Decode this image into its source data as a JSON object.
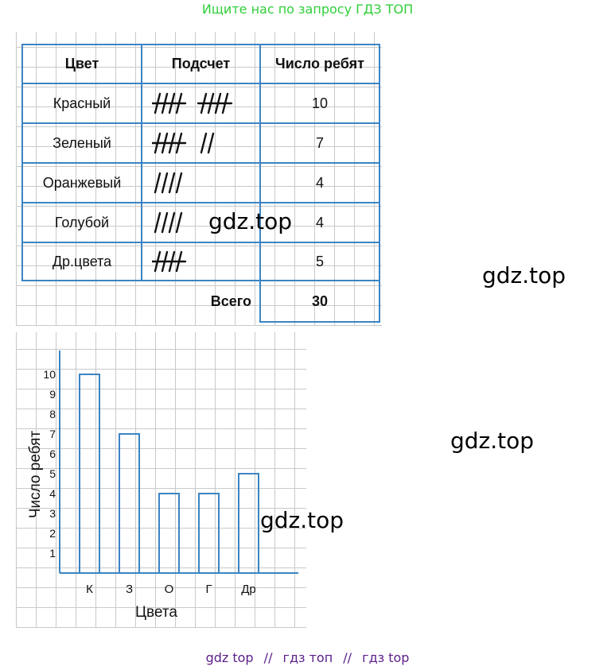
{
  "banner": "Ищите нас по запросу ГДЗ ТОП",
  "watermarks": [
    "gdz.top",
    "gdz.top",
    "gdz.top",
    "gdz.top"
  ],
  "footer_links": [
    "gdz top",
    "гдз топ",
    "гдз top"
  ],
  "footer_sep": "//",
  "colors": {
    "border": "#3b84c4",
    "grid": "#c9c9c9",
    "banner": "#2fcf3a",
    "footer": "#5a1d8a"
  },
  "table": {
    "headers": [
      "Цвет",
      "Подсчет",
      "Число ребят"
    ],
    "rows": [
      {
        "color": "Красный",
        "tally": 10,
        "count": "10"
      },
      {
        "color": "Зеленый",
        "tally": 7,
        "count": "7"
      },
      {
        "color": "Оранжевый",
        "tally": 4,
        "count": "4"
      },
      {
        "color": "Голубой",
        "tally": 4,
        "count": "4"
      },
      {
        "color": "Др.цвета",
        "tally": 5,
        "count": "5"
      }
    ],
    "total_label": "Всего",
    "total_value": "30"
  },
  "chart_data": {
    "type": "bar",
    "categories": [
      "К",
      "З",
      "О",
      "Г",
      "Др"
    ],
    "values": [
      10,
      7,
      4,
      4,
      5
    ],
    "xlabel": "Цвета",
    "ylabel": "Число ребят",
    "ylim": [
      0,
      10
    ],
    "yticks": [
      1,
      2,
      3,
      4,
      5,
      6,
      7,
      8,
      9,
      10
    ],
    "grid": true
  }
}
